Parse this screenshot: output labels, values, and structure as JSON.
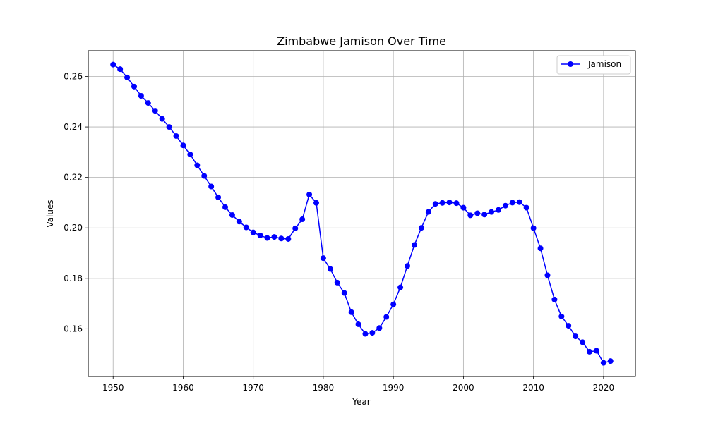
{
  "chart_data": {
    "type": "line",
    "title": "Zimbabwe Jamison Over Time",
    "xlabel": "Year",
    "ylabel": "Values",
    "xlim": [
      1946.45,
      2024.55
    ],
    "ylim": [
      0.1411,
      0.2702
    ],
    "x_ticks": [
      1950,
      1960,
      1970,
      1980,
      1990,
      2000,
      2010,
      2020
    ],
    "y_ticks": [
      0.16,
      0.18,
      0.2,
      0.22,
      0.24,
      0.26
    ],
    "y_tick_labels": [
      "0.16",
      "0.18",
      "0.20",
      "0.22",
      "0.24",
      "0.26"
    ],
    "grid": true,
    "legend_position": "top-right",
    "series": [
      {
        "name": "Jamison",
        "color": "#0000ff",
        "marker": "circle",
        "x": [
          1950,
          1951,
          1952,
          1953,
          1954,
          1955,
          1956,
          1957,
          1958,
          1959,
          1960,
          1961,
          1962,
          1963,
          1964,
          1965,
          1966,
          1967,
          1968,
          1969,
          1970,
          1971,
          1972,
          1973,
          1974,
          1975,
          1976,
          1977,
          1978,
          1979,
          1980,
          1981,
          1982,
          1983,
          1984,
          1985,
          1986,
          1987,
          1988,
          1989,
          1990,
          1991,
          1992,
          1993,
          1994,
          1995,
          1996,
          1997,
          1998,
          1999,
          2000,
          2001,
          2002,
          2003,
          2004,
          2005,
          2006,
          2007,
          2008,
          2009,
          2010,
          2011,
          2012,
          2013,
          2014,
          2015,
          2016,
          2017,
          2018,
          2019,
          2020,
          2021
        ],
        "values": [
          0.2647,
          0.2629,
          0.2596,
          0.256,
          0.2523,
          0.2495,
          0.2464,
          0.2432,
          0.24,
          0.2364,
          0.2327,
          0.2291,
          0.2248,
          0.2206,
          0.2164,
          0.2121,
          0.2082,
          0.2051,
          0.2025,
          0.2002,
          0.1982,
          0.197,
          0.196,
          0.1964,
          0.1958,
          0.1956,
          0.1998,
          0.2034,
          0.2132,
          0.2099,
          0.188,
          0.1837,
          0.1783,
          0.1742,
          0.1666,
          0.1618,
          0.158,
          0.1584,
          0.1603,
          0.1647,
          0.1697,
          0.1764,
          0.1849,
          0.1932,
          0.2,
          0.2063,
          0.2095,
          0.2099,
          0.2101,
          0.2098,
          0.208,
          0.205,
          0.2058,
          0.2053,
          0.2063,
          0.2071,
          0.2088,
          0.21,
          0.2102,
          0.208,
          0.1999,
          0.1919,
          0.1812,
          0.1716,
          0.1649,
          0.1612,
          0.157,
          0.1547,
          0.1509,
          0.1513,
          0.1465,
          0.1472
        ]
      }
    ]
  }
}
